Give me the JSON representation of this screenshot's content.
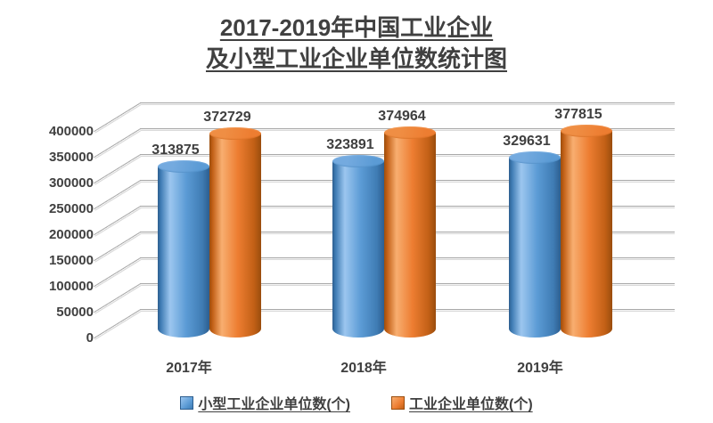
{
  "title": {
    "line1": "2017-2019年中国工业企业",
    "line2": "及小型工业企业单位数统计图"
  },
  "text_color": "#404040",
  "chart_data": {
    "type": "bar",
    "style": "3d-cylinder-clustered",
    "title": "2017-2019年中国工业企业及小型工业企业单位数统计图",
    "categories": [
      "2017年",
      "2018年",
      "2019年"
    ],
    "series": [
      {
        "name": "小型工业企业单位数(个)",
        "values": [
          313875,
          323891,
          329631
        ],
        "main": "#5B9BD5",
        "light": "#9CC6EF",
        "shade": "#3F7CB4",
        "dark": "#2D5E8F",
        "cap": "#74AADF"
      },
      {
        "name": "工业企业单位数(个)",
        "values": [
          372729,
          374964,
          377815
        ],
        "main": "#ED7D31",
        "light": "#F8AE70",
        "shade": "#C26016",
        "dark": "#9A4D0D",
        "cap": "#EF8E44"
      }
    ],
    "xlabel": "",
    "ylabel": "",
    "ylim": [
      0,
      400000
    ],
    "ytick_interval": 50000,
    "yticks": [
      0,
      50000,
      100000,
      150000,
      200000,
      250000,
      300000,
      350000,
      400000
    ],
    "grid": true,
    "legend_position": "bottom"
  }
}
